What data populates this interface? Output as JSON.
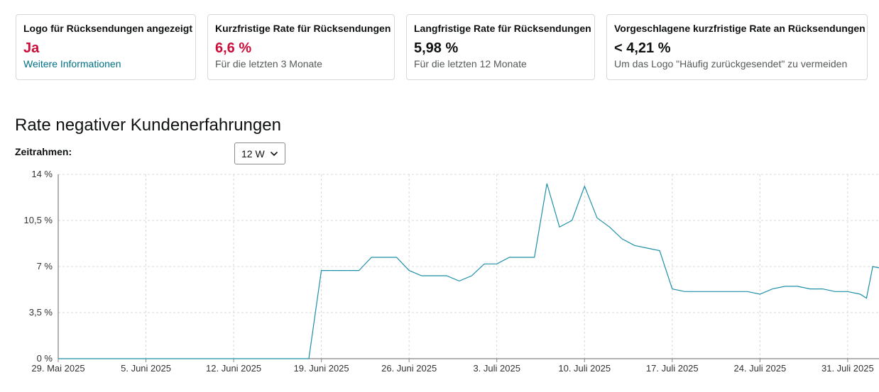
{
  "cards": [
    {
      "title": "Logo für Rücksendungen angezeigt",
      "value": "Ja",
      "link": "Weitere Informationen"
    },
    {
      "title": "Kurzfristige Rate für Rücksendungen",
      "value": "6,6 %",
      "sub": "Für die letzten 3 Monate"
    },
    {
      "title": "Langfristige Rate für Rücksendungen",
      "value": "5,98 %",
      "sub": "Für die letzten 12 Monate"
    },
    {
      "title": "Vorgeschlagene kurzfristige Rate an Rücksendungen",
      "value": "< 4,21 %",
      "sub": "Um das Logo \"Häufig zurückgesendet\" zu vermeiden"
    }
  ],
  "section_title": "Rate negativer Kundenerfahrungen",
  "timeframe": {
    "label": "Zeitrahmen:",
    "selected": "12 W"
  },
  "colors": {
    "line": "#1f8fa8",
    "value_red": "#cc0c39",
    "link": "#007185",
    "grid": "#d8d8d8"
  },
  "chart_data": {
    "type": "line",
    "x_start": "2025-05-29",
    "x_end": "2025-08-02",
    "xticks": [
      {
        "date": "2025-05-29",
        "label": "29. Mai 2025"
      },
      {
        "date": "2025-06-05",
        "label": "5. Juni 2025"
      },
      {
        "date": "2025-06-12",
        "label": "12. Juni 2025"
      },
      {
        "date": "2025-06-19",
        "label": "19. Juni 2025"
      },
      {
        "date": "2025-06-26",
        "label": "26. Juni 2025"
      },
      {
        "date": "2025-07-03",
        "label": "3. Juli 2025"
      },
      {
        "date": "2025-07-10",
        "label": "10. Juli 2025"
      },
      {
        "date": "2025-07-17",
        "label": "17. Juli 2025"
      },
      {
        "date": "2025-07-24",
        "label": "24. Juli 2025"
      },
      {
        "date": "2025-07-31",
        "label": "31. Juli 2025"
      }
    ],
    "yticks": [
      {
        "value": 0,
        "label": "0 %"
      },
      {
        "value": 3.5,
        "label": "3,5 %"
      },
      {
        "value": 7,
        "label": "7 %"
      },
      {
        "value": 10.5,
        "label": "10,5 %"
      },
      {
        "value": 14,
        "label": "14 %"
      }
    ],
    "ylim": [
      0,
      14
    ],
    "grid": true,
    "points": [
      {
        "x": "2025-05-29",
        "y": 0
      },
      {
        "x": "2025-06-18",
        "y": 0
      },
      {
        "x": "2025-06-19",
        "y": 6.7
      },
      {
        "x": "2025-06-22",
        "y": 6.7
      },
      {
        "x": "2025-06-23",
        "y": 7.7
      },
      {
        "x": "2025-06-25",
        "y": 7.7
      },
      {
        "x": "2025-06-26",
        "y": 6.7
      },
      {
        "x": "2025-06-27",
        "y": 6.3
      },
      {
        "x": "2025-06-29",
        "y": 6.3
      },
      {
        "x": "2025-06-30",
        "y": 5.9
      },
      {
        "x": "2025-07-01",
        "y": 6.3
      },
      {
        "x": "2025-07-02",
        "y": 7.2
      },
      {
        "x": "2025-07-03",
        "y": 7.2
      },
      {
        "x": "2025-07-04",
        "y": 7.7
      },
      {
        "x": "2025-07-06",
        "y": 7.7
      },
      {
        "x": "2025-07-07",
        "y": 13.3
      },
      {
        "x": "2025-07-08",
        "y": 10.0
      },
      {
        "x": "2025-07-09",
        "y": 10.5
      },
      {
        "x": "2025-07-10",
        "y": 13.1
      },
      {
        "x": "2025-07-11",
        "y": 10.7
      },
      {
        "x": "2025-07-12",
        "y": 10.0
      },
      {
        "x": "2025-07-13",
        "y": 9.1
      },
      {
        "x": "2025-07-14",
        "y": 8.6
      },
      {
        "x": "2025-07-15",
        "y": 8.4
      },
      {
        "x": "2025-07-16",
        "y": 8.2
      },
      {
        "x": "2025-07-17",
        "y": 5.3
      },
      {
        "x": "2025-07-18",
        "y": 5.1
      },
      {
        "x": "2025-07-23",
        "y": 5.1
      },
      {
        "x": "2025-07-24",
        "y": 4.9
      },
      {
        "x": "2025-07-25",
        "y": 5.3
      },
      {
        "x": "2025-07-26",
        "y": 5.5
      },
      {
        "x": "2025-07-27",
        "y": 5.5
      },
      {
        "x": "2025-07-28",
        "y": 5.3
      },
      {
        "x": "2025-07-29",
        "y": 5.3
      },
      {
        "x": "2025-07-30",
        "y": 5.1
      },
      {
        "x": "2025-07-31",
        "y": 5.1
      },
      {
        "x": "2025-08-01",
        "y": 4.9
      },
      {
        "x": "2025-08-01T12:00",
        "y": 4.6
      },
      {
        "x": "2025-08-02",
        "y": 7.0
      },
      {
        "x": "2025-08-02T12:00",
        "y": 6.9
      }
    ]
  }
}
